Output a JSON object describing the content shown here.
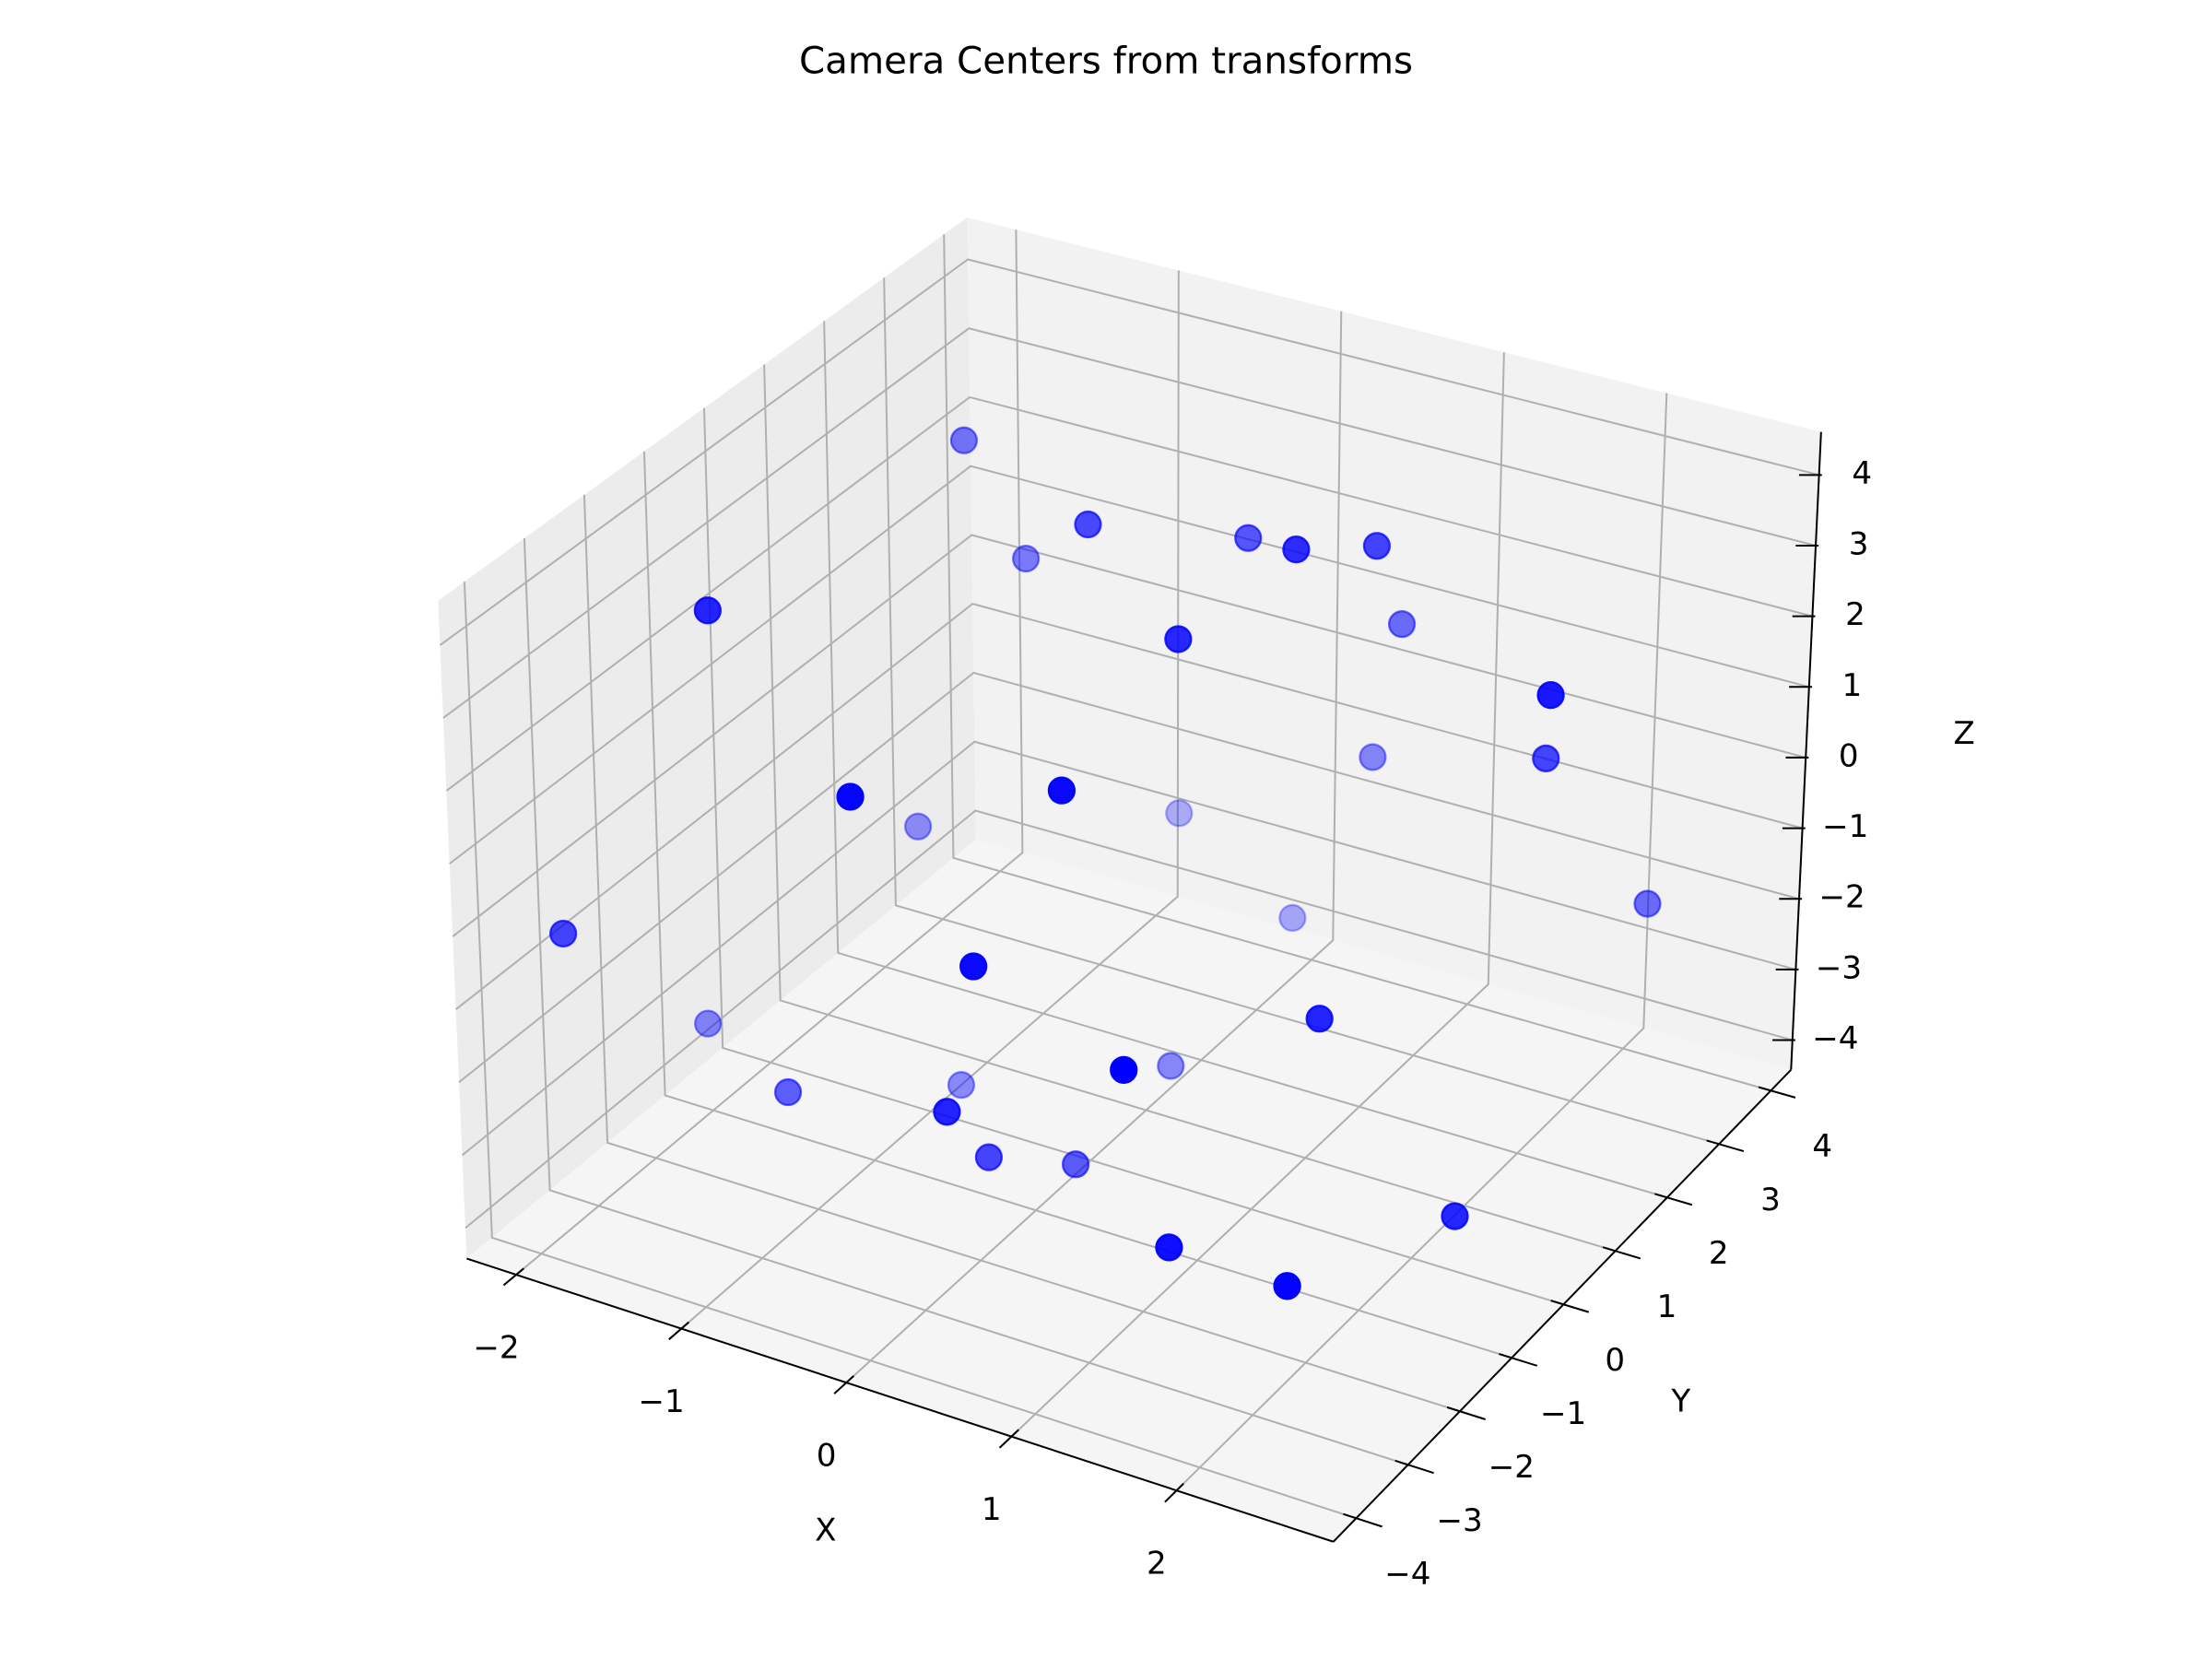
{
  "chart_data": {
    "type": "scatter3d",
    "title": "Camera Centers from transforms",
    "xlabel": "X",
    "ylabel": "Y",
    "zlabel": "Z",
    "color": "blue",
    "depthshade": true,
    "grid": true,
    "x": [
      -1.47,
      -0.39,
      -1.1,
      0.24,
      0.84,
      1.01,
      -1.61,
      0.86,
      0.47,
      2.37,
      0.7,
      2.07,
      -0.47,
      0.43,
      -1.42,
      -0.5,
      0.22,
      2.43,
      -2.16,
      0.25,
      1.68,
      -2.02,
      1.14,
      0.15,
      -1.18,
      -0.81,
      0.11,
      0.04,
      0.24,
      2.55,
      1.45,
      2.16
    ],
    "y": [
      2,
      1,
      2,
      2,
      1,
      2,
      -2,
      3,
      0,
      1,
      3,
      2,
      -3,
      -2,
      1,
      3,
      3,
      3,
      -3,
      -3,
      -1,
      -1,
      -3,
      1,
      -2,
      0,
      -3,
      -2,
      -1,
      -1,
      -3,
      -3
    ],
    "z": [
      3.42,
      3.54,
      1.97,
      3.09,
      3.95,
      3.45,
      3.45,
      1.59,
      3.12,
      2.87,
      -0.39,
      1.13,
      2.26,
      2.3,
      -1.37,
      -1.94,
      -2.97,
      -1.38,
      -0.77,
      0.43,
      -0.66,
      -3.22,
      -0.37,
      -3.7,
      -2.93,
      -3.92,
      -1.64,
      -2.98,
      -3.62,
      -2.77,
      -2.55,
      -2.58
    ],
    "xlim": [
      -2.3,
      2.95
    ],
    "ylim": [
      -4.44,
      4.39
    ],
    "zlim": [
      -4.42,
      4.61
    ],
    "xticks": [
      {
        "value": -2,
        "label": "−2"
      },
      {
        "value": -1,
        "label": "−1"
      },
      0,
      1,
      2
    ],
    "yticks": [
      {
        "value": -4,
        "label": "−4"
      },
      {
        "value": -3,
        "label": "−3"
      },
      {
        "value": -2,
        "label": "−2"
      },
      {
        "value": -1,
        "label": "−1"
      },
      0,
      1,
      2,
      3,
      4
    ],
    "zticks": [
      {
        "value": -4,
        "label": "−4"
      },
      {
        "value": -3,
        "label": "−3"
      },
      {
        "value": -2,
        "label": "−2"
      },
      {
        "value": -1,
        "label": "−1"
      },
      0,
      1,
      2,
      3,
      4
    ]
  }
}
